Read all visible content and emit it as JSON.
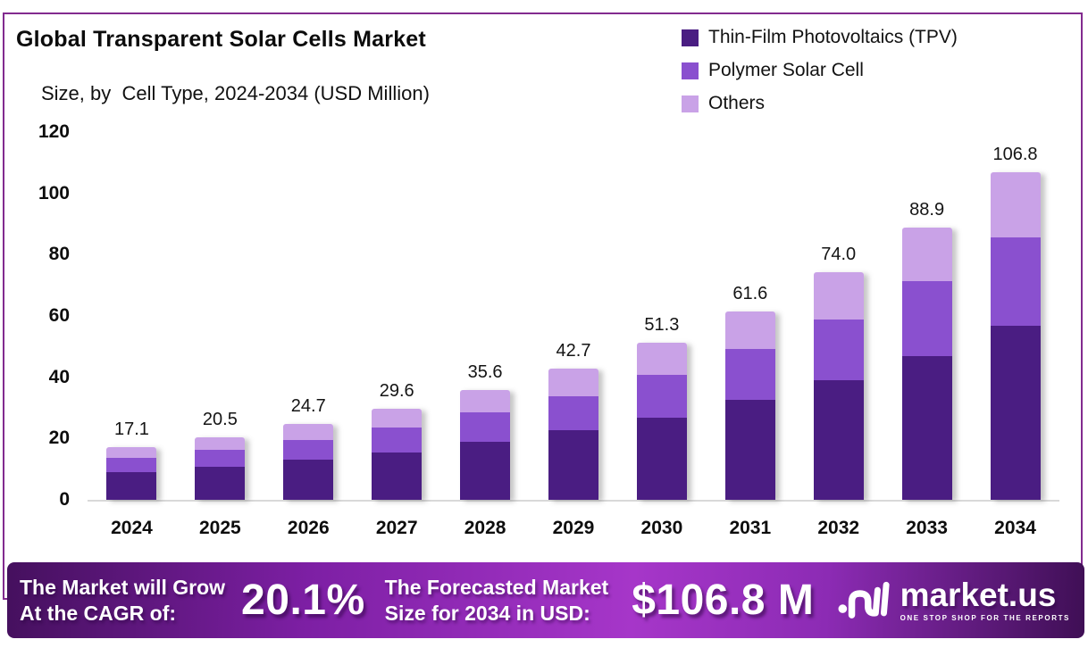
{
  "header": {
    "title": "Global Transparent Solar Cells Market",
    "subtitle": "Size, by  Cell Type, 2024-2034 (USD Million)"
  },
  "colors": {
    "panel_border": "#822b8f",
    "tpv": "#4a1d82",
    "polymer": "#8a50cf",
    "others": "#c9a2e7",
    "axis_line": "#d9d9d9",
    "banner_gradient_start": "#45105e",
    "banner_gradient_mid": "#a636c9",
    "banner_gradient_end": "#3f0f55",
    "text": "#0d0d0d",
    "banner_text": "#ffffff"
  },
  "chart_data": {
    "type": "bar",
    "stacked": true,
    "title": "Global Transparent Solar Cells Market",
    "subtitle": "Size, by  Cell Type, 2024-2034 (USD Million)",
    "xlabel": "",
    "ylabel": "USD Million",
    "ylim": [
      0,
      120
    ],
    "y_ticks": [
      0,
      20,
      40,
      60,
      80,
      100,
      120
    ],
    "grid": false,
    "legend_position": "top-right",
    "categories": [
      "2024",
      "2025",
      "2026",
      "2027",
      "2028",
      "2029",
      "2030",
      "2031",
      "2032",
      "2033",
      "2034"
    ],
    "totals": [
      "17.1",
      "20.5",
      "24.7",
      "29.6",
      "35.6",
      "42.7",
      "51.3",
      "61.6",
      "74.0",
      "88.9",
      "106.8"
    ],
    "series": [
      {
        "name": "Thin-Film Photovoltaics (TPV)",
        "color": "#4a1d82",
        "values": [
          8.9,
          10.9,
          13.0,
          15.5,
          18.9,
          22.6,
          26.8,
          32.7,
          39.0,
          47.0,
          56.7
        ]
      },
      {
        "name": "Polymer Solar Cell",
        "color": "#8a50cf",
        "values": [
          4.7,
          5.6,
          6.4,
          8.1,
          9.5,
          11.0,
          14.1,
          16.7,
          19.7,
          24.4,
          28.9
        ]
      },
      {
        "name": "Others",
        "color": "#c9a2e7",
        "values": [
          3.5,
          4.0,
          5.3,
          6.0,
          7.2,
          9.1,
          10.4,
          12.2,
          15.3,
          17.5,
          21.2
        ]
      }
    ]
  },
  "banner": {
    "left_line1": "The Market will Grow",
    "left_line2": "At the CAGR of:",
    "cagr_value": "20.1%",
    "mid_line1": "The Forecasted Market",
    "mid_line2": "Size for 2034 in USD:",
    "forecast_value": "$106.8 M",
    "logo": {
      "icon": "market-us-pulse-icon",
      "name": "market.us",
      "tagline": "ONE STOP SHOP FOR THE REPORTS"
    }
  }
}
